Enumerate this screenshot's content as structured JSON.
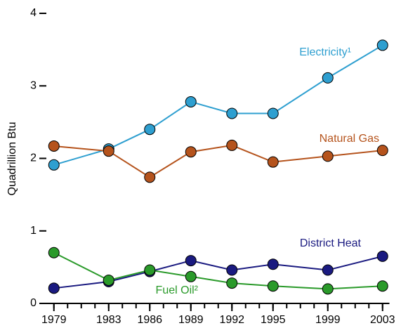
{
  "chart_data": {
    "type": "line",
    "y_label": "Quadrillion Btu",
    "x": [
      1979,
      1983,
      1986,
      1989,
      1992,
      1995,
      1999,
      2003
    ],
    "series": [
      {
        "name": "Electricity¹",
        "color": "#2e9fd0",
        "values": [
          1.91,
          2.13,
          2.4,
          2.78,
          2.62,
          2.62,
          3.11,
          3.56
        ]
      },
      {
        "name": "Natural Gas",
        "color": "#b5531c",
        "values": [
          2.17,
          2.1,
          1.74,
          2.09,
          2.18,
          1.95,
          2.03,
          2.11
        ]
      },
      {
        "name": "District Heat",
        "color": "#1a1a80",
        "values": [
          0.21,
          0.3,
          0.44,
          0.59,
          0.46,
          0.54,
          0.46,
          0.65
        ]
      },
      {
        "name": "Fuel Oil²",
        "color": "#2a9a2a",
        "values": [
          0.7,
          0.32,
          0.46,
          0.37,
          0.28,
          0.24,
          0.2,
          0.24
        ]
      }
    ],
    "xlim": [
      1978.5,
      2003.5
    ],
    "xticks": [
      1979,
      1983,
      1986,
      1989,
      1992,
      1995,
      1999,
      2003
    ],
    "xminor_ticks": [
      1979,
      1980,
      1981,
      1982,
      1983,
      1984,
      1985,
      1986,
      1987,
      1988,
      1989,
      1990,
      1991,
      1992,
      1993,
      1994,
      1995,
      1996,
      1997,
      1998,
      1999,
      2000,
      2001,
      2002,
      2003
    ],
    "ylim": [
      0,
      4
    ],
    "yticks": [
      0,
      1,
      2,
      3,
      4
    ]
  }
}
